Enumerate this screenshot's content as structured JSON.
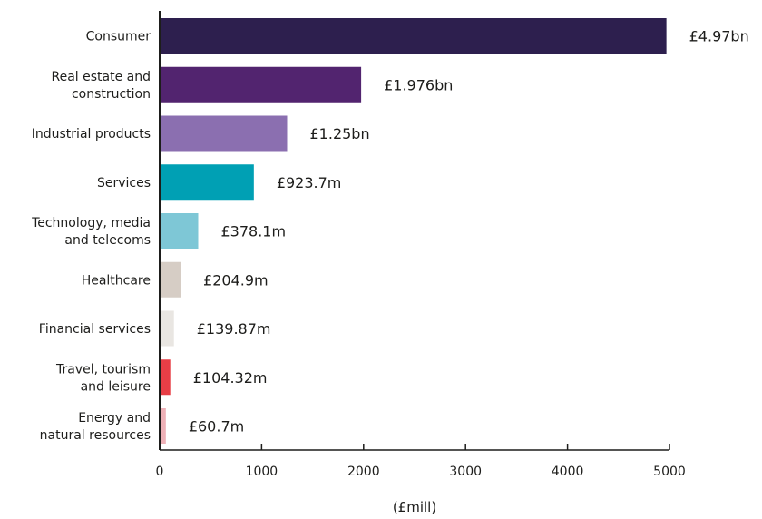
{
  "chart_data": {
    "type": "bar",
    "orientation": "horizontal",
    "title": "",
    "xlabel": "(£mill)",
    "ylabel": "",
    "xlim": [
      0,
      5000
    ],
    "x_ticks": [
      "0",
      "1000",
      "2000",
      "3000",
      "4000",
      "5000"
    ],
    "grid": false,
    "categories": [
      [
        "Consumer"
      ],
      [
        "Real estate and",
        "construction"
      ],
      [
        "Industrial products"
      ],
      [
        "Services"
      ],
      [
        "Technology, media",
        "and telecoms"
      ],
      [
        "Healthcare"
      ],
      [
        "Financial services"
      ],
      [
        "Travel, tourism",
        "and leisure"
      ],
      [
        "Energy and",
        "natural resources"
      ]
    ],
    "values": [
      4970,
      1976,
      1250,
      923.7,
      378.1,
      204.9,
      139.87,
      104.32,
      60.7
    ],
    "value_labels": [
      "£4.97bn",
      "£1.976bn",
      "£1.25bn",
      "£923.7m",
      "£378.1m",
      "£204.9m",
      "£139.87m",
      "£104.32m",
      "£60.7m"
    ],
    "colors": [
      "#2d1f4e",
      "#52246f",
      "#8b6fb0",
      "#00a0b4",
      "#7ec7d6",
      "#d6cdc5",
      "#e9e6e2",
      "#e83e46",
      "#eeb1b7"
    ]
  }
}
